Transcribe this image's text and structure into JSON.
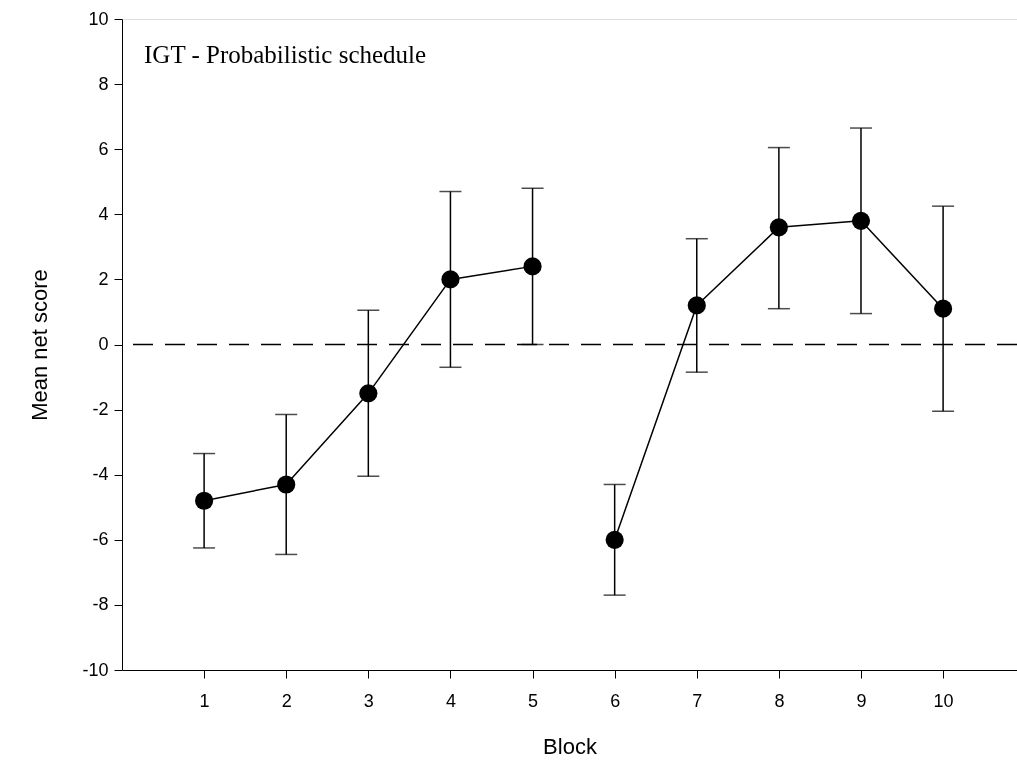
{
  "chart_data": {
    "type": "line",
    "xlabel": "Block",
    "ylabel": "Mean net score",
    "annotations": [
      "IGT - Probabilistic schedule"
    ],
    "xlim": [
      0,
      10.9
    ],
    "xticks": [
      1,
      2,
      3,
      4,
      5,
      6,
      7,
      8,
      9,
      10
    ],
    "ylim": [
      -10,
      10
    ],
    "yticks": [
      -10,
      -8,
      -6,
      -4,
      -2,
      0,
      2,
      4,
      6,
      8,
      10
    ],
    "series": [
      {
        "color": "#000000",
        "x": [
          1,
          2,
          3,
          4,
          5
        ],
        "values": [
          -4.8,
          -4.3,
          -1.5,
          2.0,
          2.4
        ],
        "errors": [
          [
            -6.25,
            -3.35
          ],
          [
            -6.45,
            -2.15
          ],
          [
            -4.05,
            1.05
          ],
          [
            -0.7,
            4.7
          ],
          [
            0.0,
            4.8
          ]
        ]
      },
      {
        "color": "#000000",
        "x": [
          6,
          7,
          8,
          9,
          10
        ],
        "values": [
          -6.0,
          1.2,
          3.6,
          3.8,
          1.1
        ],
        "errors": [
          [
            -7.7,
            -4.3
          ],
          [
            -0.85,
            3.25
          ],
          [
            1.1,
            6.05
          ],
          [
            0.95,
            6.65
          ],
          [
            -2.05,
            4.25
          ]
        ]
      }
    ],
    "ref_lines": [
      {
        "axis": "y",
        "value": 0,
        "line_style": "dashed",
        "color": "#000000"
      }
    ],
    "marker": "circle",
    "line_style": "solid",
    "grid": false
  }
}
